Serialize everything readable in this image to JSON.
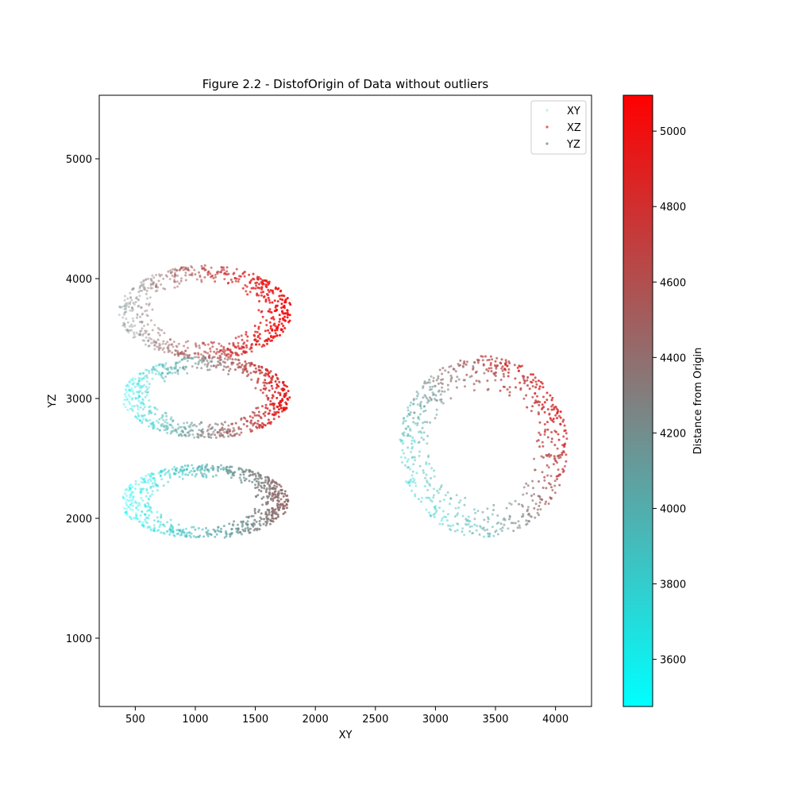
{
  "chart_data": {
    "type": "scatter",
    "title": "Figure 2.2 - DistofOrigin of Data without outliers",
    "xlabel": "XY",
    "ylabel": "YZ",
    "xlim": [
      200,
      4300
    ],
    "ylim": [
      430,
      5530
    ],
    "x_ticks": [
      500,
      1000,
      1500,
      2000,
      2500,
      3000,
      3500,
      4000
    ],
    "y_ticks": [
      1000,
      2000,
      3000,
      4000,
      5000
    ],
    "grid": false,
    "legend": {
      "placement": "top-right",
      "entries": [
        {
          "label": "XY",
          "color": "#b0dcdc",
          "opacity": 0.5
        },
        {
          "label": "XZ",
          "color": "#e84040",
          "opacity": 0.8
        },
        {
          "label": "YZ",
          "color": "#8a8a8a",
          "opacity": 0.8
        }
      ]
    },
    "colorbar": {
      "label": "Distance from Origin",
      "range": [
        3475,
        5095
      ],
      "ticks": [
        3600,
        3800,
        4000,
        4200,
        4400,
        4600,
        4800,
        5000
      ],
      "colors": [
        "#00ffff",
        "#808080",
        "#ff0000"
      ]
    },
    "clusters": [
      {
        "name": "left-upper",
        "cx": 1085,
        "cy": 3720,
        "rx": 720,
        "ry": 390,
        "dist_low": 4200,
        "dist_high": 5095,
        "gradient": "x"
      },
      {
        "name": "left-middle",
        "cx": 1095,
        "cy": 3010,
        "rx": 700,
        "ry": 340,
        "dist_low": 3550,
        "dist_high": 5000,
        "gradient": "x"
      },
      {
        "name": "left-lower",
        "cx": 1080,
        "cy": 2140,
        "rx": 700,
        "ry": 310,
        "dist_low": 3500,
        "dist_high": 4450,
        "gradient": "x"
      },
      {
        "name": "right-ring",
        "cx": 3400,
        "cy": 2600,
        "rx": 700,
        "ry": 760,
        "dist_low": 3500,
        "dist_high": 5095,
        "gradient": "xy"
      }
    ]
  }
}
